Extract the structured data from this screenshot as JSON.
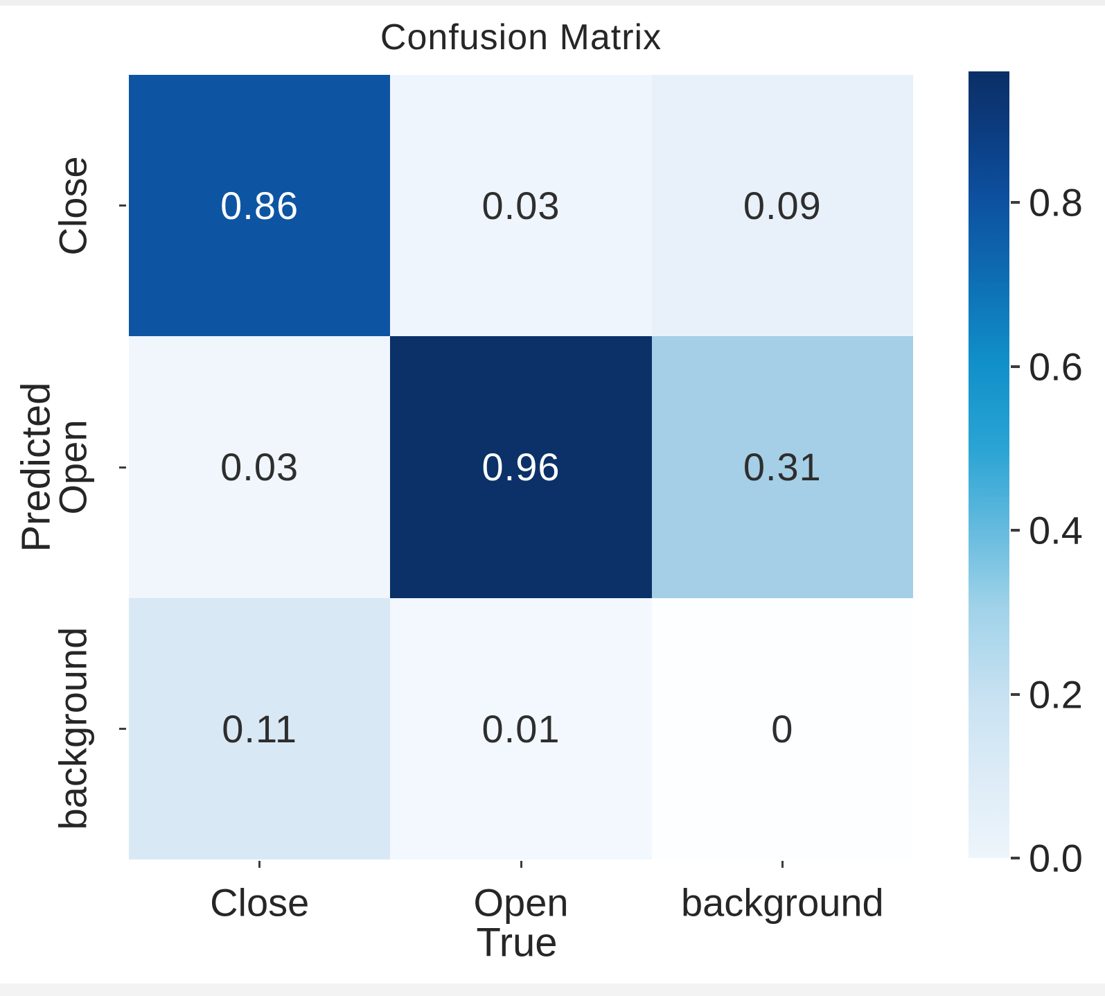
{
  "figure": {
    "background_color": "#ffffff",
    "text_color": "#262626",
    "tick_mark_color": "#3c3c3c"
  },
  "chart_data": {
    "type": "heatmap",
    "title": "Confusion Matrix",
    "xlabel": "True",
    "ylabel": "Predicted",
    "x_categories": [
      "Close",
      "Open",
      "background"
    ],
    "y_categories": [
      "Close",
      "Open",
      "background"
    ],
    "matrix": [
      [
        0.86,
        0.03,
        0.09
      ],
      [
        0.03,
        0.96,
        0.31
      ],
      [
        0.11,
        0.01,
        0
      ]
    ],
    "cell_labels": [
      [
        "0.86",
        "0.03",
        "0.09"
      ],
      [
        "0.03",
        "0.96",
        "0.31"
      ],
      [
        "0.11",
        "0.01",
        "0"
      ]
    ],
    "cell_colors": [
      [
        "#0d55a3",
        "#eff5fc",
        "#e8f1fa"
      ],
      [
        "#f0f6fc",
        "#0b3168",
        "#a4cfe6"
      ],
      [
        "#d9e8f5",
        "#f2f8fd",
        "#fcfeff"
      ]
    ],
    "cell_text_colors": [
      [
        "#ffffff",
        "#2e2e2e",
        "#2e2e2e"
      ],
      [
        "#2e2e2e",
        "#ffffff",
        "#2e2e2e"
      ],
      [
        "#2e2e2e",
        "#2e2e2e",
        "#2e2e2e"
      ]
    ],
    "colormap": "Blues",
    "vmin": 0,
    "vmax": 0.96,
    "grid": false,
    "legend": null,
    "colorbar": {
      "position": "right",
      "tick_labels": [
        "0.8",
        "0.6",
        "0.4",
        "0.2",
        "0.0"
      ],
      "tick_values": [
        0.8,
        0.6,
        0.4,
        0.2,
        0.0
      ],
      "gradient_stops": [
        {
          "pos": 0.0,
          "color": "#eef5fb"
        },
        {
          "pos": 0.1,
          "color": "#ddecf7"
        },
        {
          "pos": 0.2,
          "color": "#c9e2f2"
        },
        {
          "pos": 0.32,
          "color": "#9fd2e9"
        },
        {
          "pos": 0.42,
          "color": "#63bade"
        },
        {
          "pos": 0.52,
          "color": "#2aa4d4"
        },
        {
          "pos": 0.63,
          "color": "#1090c9"
        },
        {
          "pos": 0.74,
          "color": "#0e6cb3"
        },
        {
          "pos": 0.84,
          "color": "#0d509f"
        },
        {
          "pos": 0.93,
          "color": "#0c3b7e"
        },
        {
          "pos": 1.0,
          "color": "#0b2f66"
        }
      ]
    }
  }
}
